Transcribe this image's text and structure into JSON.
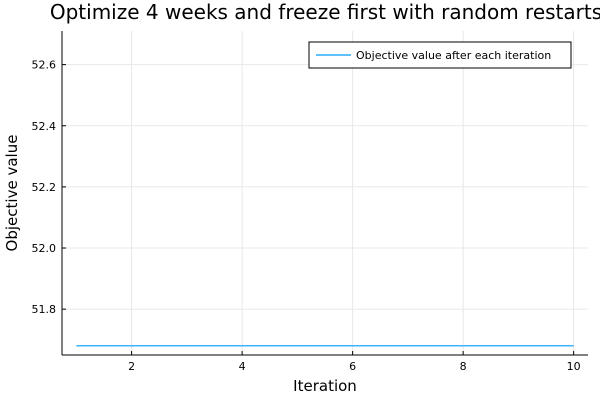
{
  "chart_data": {
    "type": "line",
    "title": "Optimize 4 weeks and freeze first with random restarts",
    "xlabel": "Iteration",
    "ylabel": "Objective value",
    "xlim": [
      0.74,
      10.26
    ],
    "ylim": [
      51.65,
      52.71
    ],
    "x_ticks": [
      2,
      4,
      6,
      8,
      10
    ],
    "y_ticks": [
      51.8,
      52.0,
      52.2,
      52.4,
      52.6
    ],
    "grid": true,
    "legend_position": "top-right",
    "series": [
      {
        "name": "Objective value after each iteration",
        "color": "#009AFA",
        "x": [
          1,
          2,
          3,
          4,
          5,
          6,
          7,
          8,
          9,
          10
        ],
        "y": [
          51.68,
          51.68,
          51.68,
          51.68,
          51.68,
          51.68,
          51.68,
          51.68,
          51.68,
          51.68
        ]
      }
    ]
  }
}
